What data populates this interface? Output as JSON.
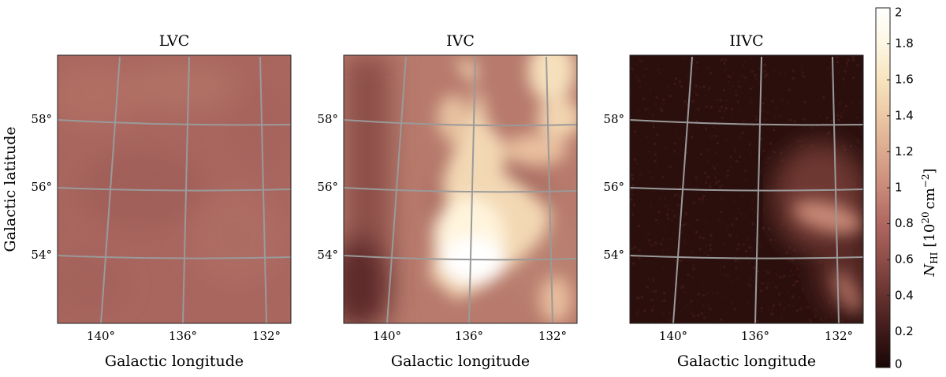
{
  "colorbar": {
    "label_main": "N",
    "label_sub": "HI",
    "label_units": "[10",
    "label_exp": "20",
    "label_units2": "cm",
    "label_exp2": "−2",
    "label_close": "]",
    "ticks": [
      "0",
      "0.2",
      "0.4",
      "0.6",
      "0.8",
      "1",
      "1.2",
      "1.4",
      "1.6",
      "1.8",
      "2"
    ],
    "range": [
      0,
      2
    ],
    "colors": [
      "#1a0707",
      "#3e1a19",
      "#66322f",
      "#8e4d48",
      "#b06761",
      "#c98a79",
      "#dba98f",
      "#ecc8a6",
      "#f7e4bf",
      "#fdf6e3",
      "#ffffff"
    ]
  },
  "axes": {
    "xlabel": "Galactic longitude",
    "ylabel": "Galactic latitude",
    "xticks": [
      "140°",
      "136°",
      "132°"
    ],
    "yticks": [
      "58°",
      "56°",
      "54°"
    ]
  },
  "panels": [
    {
      "title": "LVC",
      "base_color": "#a8665f"
    },
    {
      "title": "IVC",
      "base_color": "#b77a6c"
    },
    {
      "title": "IIVC",
      "base_color": "#2a0f0d"
    }
  ],
  "chart_data": {
    "type": "heatmap",
    "panels": [
      "LVC",
      "IVC",
      "IIVC"
    ],
    "quantity": "N_HI",
    "units": "10^20 cm^-2",
    "zlim": [
      0,
      2
    ],
    "xlabel": "Galactic longitude",
    "ylabel": "Galactic latitude",
    "x_ticks": [
      "140°",
      "136°",
      "132°"
    ],
    "y_ticks": [
      "58°",
      "56°",
      "54°"
    ],
    "grid": true
  }
}
